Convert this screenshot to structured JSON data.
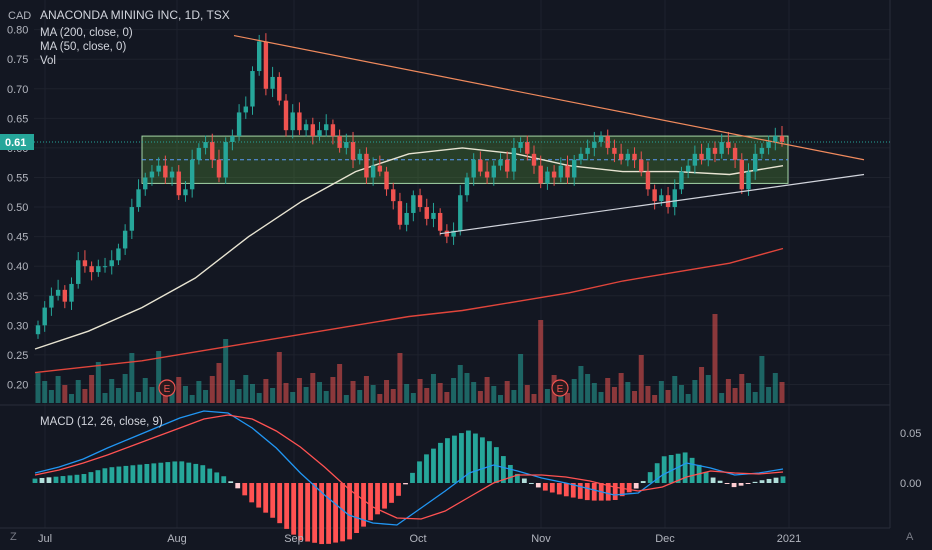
{
  "header": {
    "title": "ANACONDA MINING INC, 1D, TSX",
    "currency": "CAD",
    "indicators": [
      "MA (200, close, 0)",
      "MA (50, close, 0)",
      "Vol"
    ],
    "macd_label": "MACD (12, 26, close, 9)",
    "log_toggle": "A",
    "tz_label": "Z"
  },
  "colors": {
    "background": "#131722",
    "up": "#26a69a",
    "down": "#ef5350",
    "ma200": "#e0453b",
    "ma50": "#e8e4d2",
    "trendline_upper": "#f08a5d",
    "trendline_lower": "#d1d4dc",
    "range_box": "#a5d6a7",
    "price_badge": "#26a69a",
    "macd_line": "#2196f3",
    "signal_line": "#ff5252",
    "text": "#b2b5be"
  },
  "chart_data": [
    {
      "type": "candlestick",
      "title": "ANACONDA MINING INC, 1D, TSX",
      "y_unit": "CAD",
      "x_ticks": [
        "Jul",
        "Aug",
        "Sep",
        "Oct",
        "Nov",
        "Dec",
        "2021"
      ],
      "y_ticks": [
        0.2,
        0.25,
        0.3,
        0.35,
        0.4,
        0.45,
        0.5,
        0.55,
        0.6,
        0.65,
        0.7,
        0.75,
        0.8
      ],
      "ylim": [
        0.17,
        0.81
      ],
      "last_price": "0.61",
      "candles_close": [
        0.3,
        0.33,
        0.35,
        0.36,
        0.34,
        0.37,
        0.41,
        0.4,
        0.39,
        0.4,
        0.4,
        0.41,
        0.43,
        0.46,
        0.5,
        0.53,
        0.55,
        0.56,
        0.57,
        0.55,
        0.56,
        0.52,
        0.53,
        0.58,
        0.6,
        0.61,
        0.58,
        0.55,
        0.61,
        0.62,
        0.66,
        0.67,
        0.73,
        0.78,
        0.7,
        0.72,
        0.68,
        0.63,
        0.66,
        0.63,
        0.64,
        0.62,
        0.63,
        0.64,
        0.62,
        0.6,
        0.61,
        0.58,
        0.59,
        0.55,
        0.57,
        0.56,
        0.53,
        0.51,
        0.47,
        0.49,
        0.52,
        0.5,
        0.48,
        0.49,
        0.46,
        0.45,
        0.46,
        0.52,
        0.55,
        0.58,
        0.56,
        0.55,
        0.57,
        0.58,
        0.56,
        0.6,
        0.61,
        0.59,
        0.57,
        0.54,
        0.56,
        0.55,
        0.57,
        0.55,
        0.58,
        0.59,
        0.6,
        0.61,
        0.62,
        0.6,
        0.59,
        0.58,
        0.59,
        0.58,
        0.56,
        0.53,
        0.51,
        0.52,
        0.5,
        0.53,
        0.56,
        0.57,
        0.59,
        0.58,
        0.6,
        0.59,
        0.61,
        0.6,
        0.58,
        0.53,
        0.56,
        0.59,
        0.6,
        0.61,
        0.62,
        0.61
      ],
      "series": [
        {
          "name": "MA (200, close, 0)",
          "x_range": [
            "Jul",
            "2021"
          ],
          "values": [
            0.22,
            0.23,
            0.24,
            0.255,
            0.27,
            0.285,
            0.3,
            0.315,
            0.325,
            0.34,
            0.355,
            0.375,
            0.39,
            0.405,
            0.43
          ]
        },
        {
          "name": "MA (50, close, 0)",
          "x_range": [
            "Jul",
            "2021"
          ],
          "values": [
            0.26,
            0.29,
            0.33,
            0.38,
            0.45,
            0.51,
            0.56,
            0.59,
            0.6,
            0.59,
            0.57,
            0.56,
            0.56,
            0.555,
            0.57
          ]
        }
      ],
      "annotations": {
        "upper_trendline": [
          {
            "x": "Aug 12",
            "y": 0.79
          },
          {
            "x": "Jan 15",
            "y": 0.58
          }
        ],
        "lower_trendline": [
          {
            "x": "Oct 5",
            "y": 0.455
          },
          {
            "x": "Jan 15",
            "y": 0.555
          }
        ],
        "range_box": {
          "top": 0.62,
          "bottom": 0.54,
          "mid": 0.58
        },
        "earnings_markers": [
          "E",
          "E"
        ]
      }
    },
    {
      "type": "bar",
      "title": "MACD (12, 26, close, 9)",
      "y_ticks": [
        "0.05",
        "0.00"
      ],
      "ylim": [
        -0.06,
        0.08
      ],
      "series": [
        {
          "name": "MACD",
          "values": [
            0.01,
            0.016,
            0.024,
            0.035,
            0.045,
            0.055,
            0.065,
            0.072,
            0.07,
            0.055,
            0.035,
            0.01,
            -0.012,
            -0.032,
            -0.04,
            -0.042,
            -0.025,
            -0.008,
            0.01,
            0.018,
            0.012,
            0.005,
            0.0,
            -0.006,
            -0.012,
            -0.01,
            0.008,
            0.02,
            0.015,
            0.008,
            0.01,
            0.014
          ]
        },
        {
          "name": "Signal",
          "values": [
            0.008,
            0.013,
            0.02,
            0.028,
            0.037,
            0.046,
            0.055,
            0.064,
            0.068,
            0.064,
            0.052,
            0.036,
            0.016,
            -0.006,
            -0.024,
            -0.035,
            -0.036,
            -0.028,
            -0.014,
            0.0,
            0.008,
            0.008,
            0.006,
            0.002,
            -0.004,
            -0.008,
            -0.004,
            0.006,
            0.012,
            0.01,
            0.009,
            0.011
          ]
        }
      ]
    }
  ]
}
